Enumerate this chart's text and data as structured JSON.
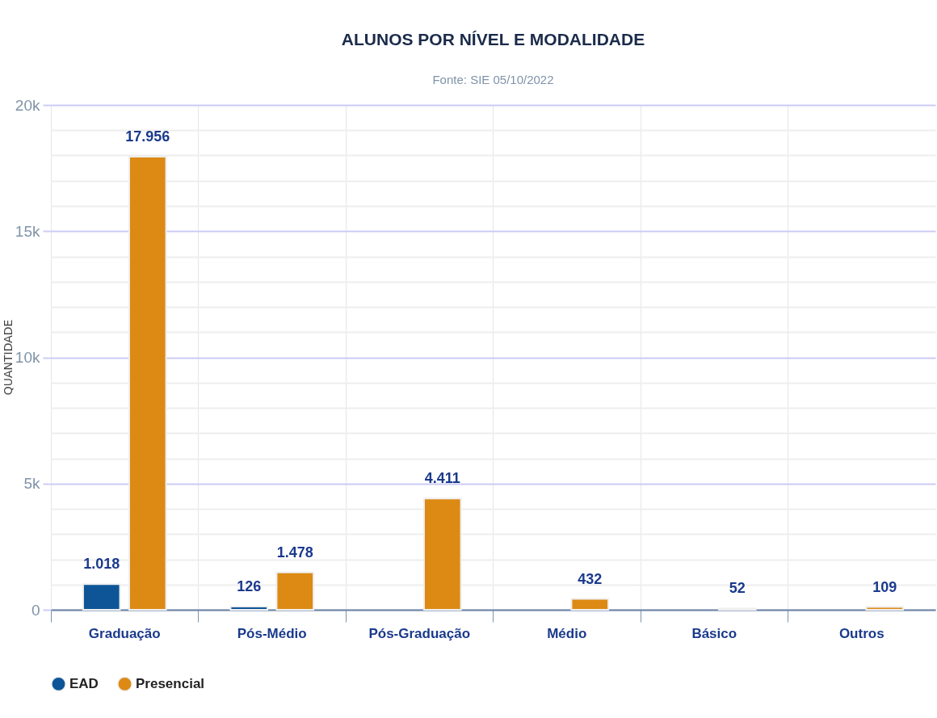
{
  "chart_data": {
    "type": "bar",
    "title": "ALUNOS POR NÍVEL E MODALIDADE",
    "subtitle": "Fonte: SIE 05/10/2022",
    "ylabel": "QUANTIDADE",
    "categories": [
      "Graduação",
      "Pós-Médio",
      "Pós-Graduação",
      "Médio",
      "Básico",
      "Outros"
    ],
    "series": [
      {
        "name": "EAD",
        "color": "#0d5597",
        "values": [
          1018,
          126,
          null,
          null,
          null,
          null
        ],
        "value_labels": [
          "1.018",
          "126",
          null,
          null,
          null,
          null
        ]
      },
      {
        "name": "Presencial",
        "color": "#dc8a14",
        "values": [
          17956,
          1478,
          4411,
          432,
          52,
          109
        ],
        "value_labels": [
          "17.956",
          "1.478",
          "4.411",
          "432",
          "52",
          "109"
        ]
      }
    ],
    "ylim": [
      0,
      20000
    ],
    "yticks": [
      {
        "value": 0,
        "label": "0"
      },
      {
        "value": 1000,
        "label": null
      },
      {
        "value": 2000,
        "label": null
      },
      {
        "value": 3000,
        "label": null
      },
      {
        "value": 4000,
        "label": null
      },
      {
        "value": 5000,
        "label": "5k"
      },
      {
        "value": 6000,
        "label": null
      },
      {
        "value": 7000,
        "label": null
      },
      {
        "value": 8000,
        "label": null
      },
      {
        "value": 9000,
        "label": null
      },
      {
        "value": 10000,
        "label": "10k"
      },
      {
        "value": 11000,
        "label": null
      },
      {
        "value": 12000,
        "label": null
      },
      {
        "value": 13000,
        "label": null
      },
      {
        "value": 14000,
        "label": null
      },
      {
        "value": 15000,
        "label": "15k"
      },
      {
        "value": 16000,
        "label": null
      },
      {
        "value": 17000,
        "label": null
      },
      {
        "value": 18000,
        "label": null
      },
      {
        "value": 19000,
        "label": null
      },
      {
        "value": 20000,
        "label": "20k"
      }
    ],
    "grid": true,
    "legend": "bottom"
  }
}
